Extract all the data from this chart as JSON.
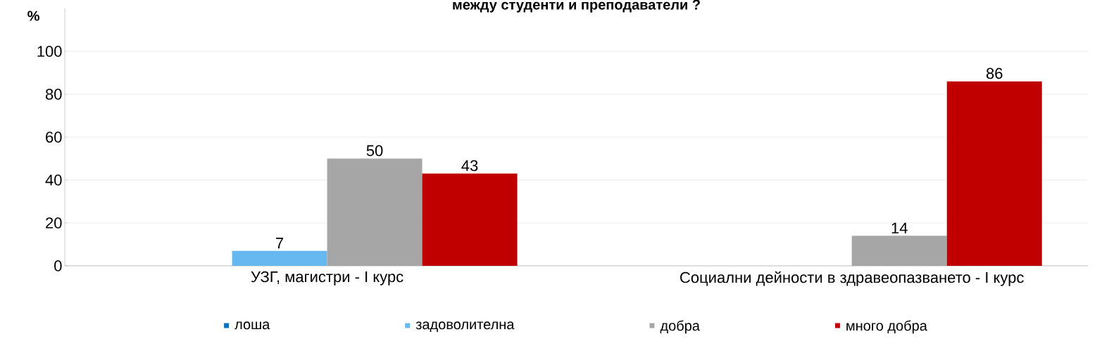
{
  "chart_data": {
    "type": "bar",
    "title": "между студенти и преподаватели ?",
    "ylabel": "%",
    "categories": [
      "УЗГ, магистри - I курс",
      "Социални дейности в здравеопазването - I курс"
    ],
    "series": [
      {
        "name": "лоша",
        "color": "#0070c0",
        "values": [
          null,
          null
        ]
      },
      {
        "name": "задоволителна",
        "color": "#66b8f0",
        "values": [
          7,
          null
        ]
      },
      {
        "name": "добра",
        "color": "#a6a6a6",
        "values": [
          50,
          14
        ]
      },
      {
        "name": "много добра",
        "color": "#c00000",
        "values": [
          43,
          86
        ]
      }
    ],
    "ylim": [
      0,
      120
    ],
    "yticks": [
      0,
      20,
      40,
      60,
      80,
      100
    ],
    "grid": "y",
    "legend": "bottom",
    "data_labels": true
  }
}
